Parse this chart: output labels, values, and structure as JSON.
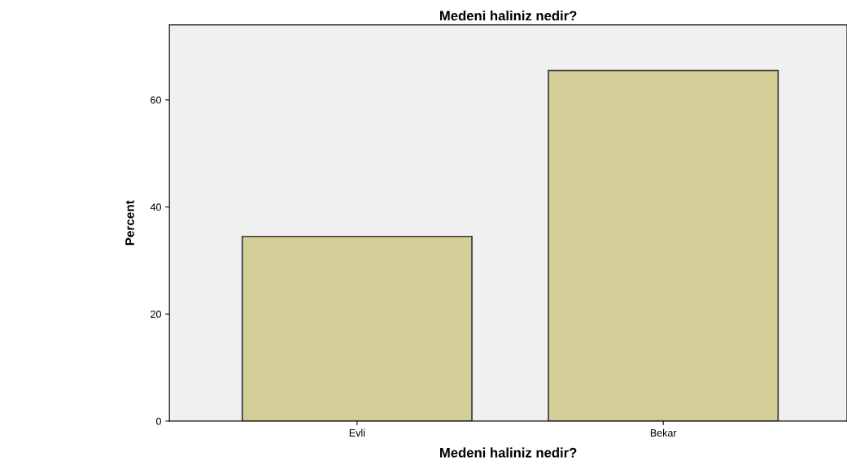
{
  "chart_data": {
    "type": "bar",
    "title": "Medeni haliniz nedir?",
    "xlabel": "Medeni haliniz nedir?",
    "ylabel": "Percent",
    "categories": [
      "Evli",
      "Bekar"
    ],
    "values": [
      34.5,
      65.5
    ],
    "color": "#d3cd97",
    "ylim": [
      0,
      74
    ],
    "yticks": [
      0,
      20,
      40,
      60
    ],
    "grid": false,
    "legend": false
  }
}
